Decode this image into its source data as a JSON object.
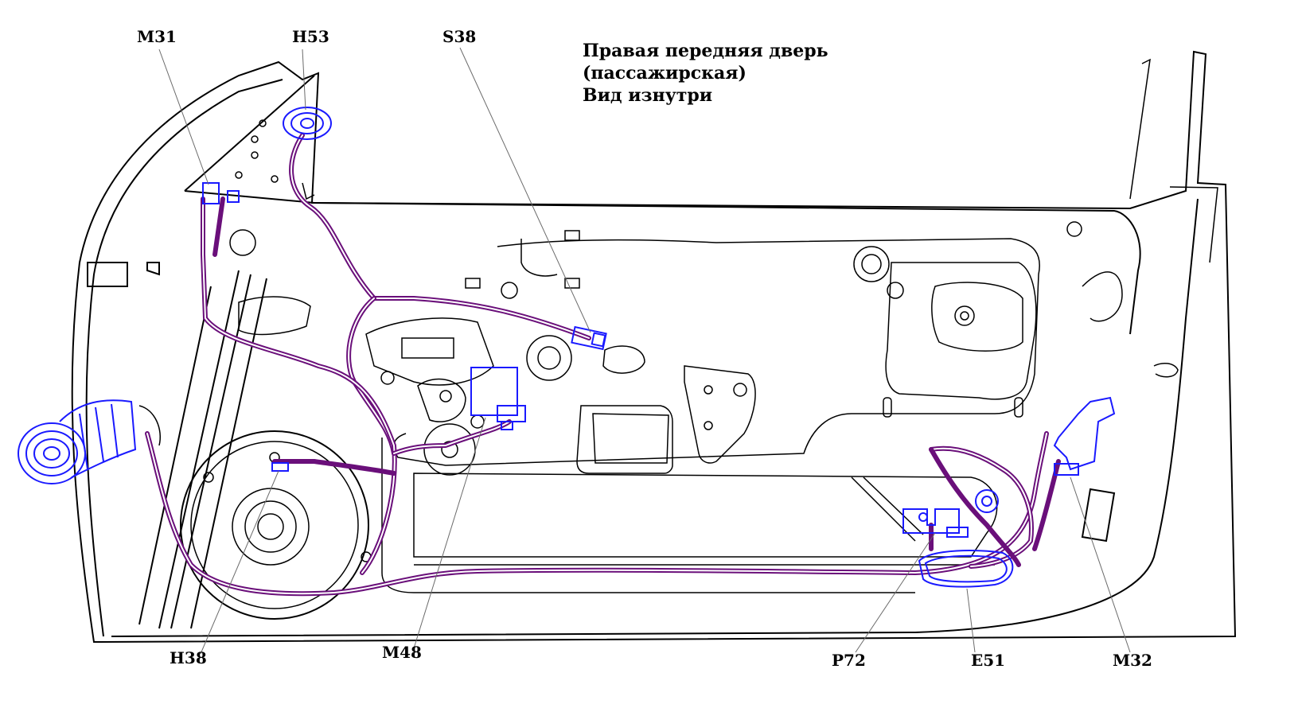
{
  "title": {
    "line1": "Правая передняя дверь",
    "line2": "(пассажирская)",
    "line3": "Вид изнутри"
  },
  "labels": {
    "m31": "M31",
    "h53": "H53",
    "s38": "S38",
    "h38": "H38",
    "m48": "M48",
    "p72": "P72",
    "e51": "E51",
    "m32": "M32"
  },
  "colors": {
    "harness": "#6a0f7a",
    "component": "#1a1aff",
    "outline": "#000000",
    "leader": "#6b6b6b"
  }
}
